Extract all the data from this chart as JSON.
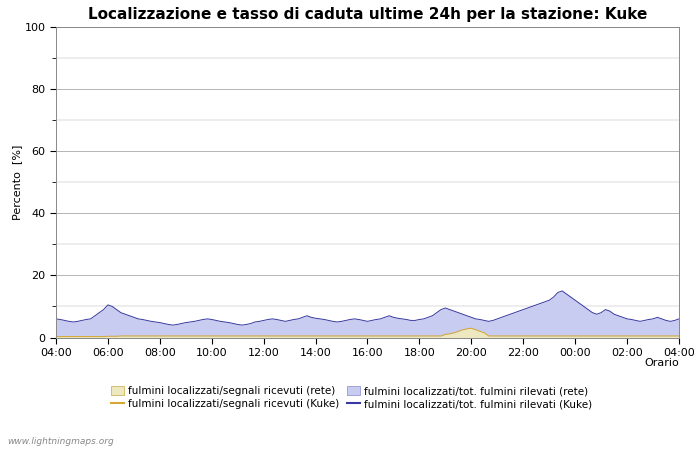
{
  "title": "Localizzazione e tasso di caduta ultime 24h per la stazione: Kuke",
  "ylabel": "Percento  [%]",
  "xlabel": "Orario",
  "watermark": "www.lightningmaps.org",
  "ylim": [
    0,
    100
  ],
  "yticks": [
    0,
    20,
    40,
    60,
    80,
    100
  ],
  "yticks_minor": [
    10,
    30,
    50,
    70,
    90
  ],
  "xtick_labels": [
    "04:00",
    "06:00",
    "08:00",
    "10:00",
    "12:00",
    "14:00",
    "16:00",
    "18:00",
    "20:00",
    "22:00",
    "00:00",
    "02:00",
    "04:00"
  ],
  "color_fill_rete": "#ede8c0",
  "color_fill_kuke": "#c8ccf0",
  "color_line_rete": "#d4a830",
  "color_line_kuke": "#3838a0",
  "background_color": "#ffffff",
  "grid_color": "#aaaaaa",
  "title_fontsize": 11,
  "label_fontsize": 8,
  "tick_fontsize": 8,
  "legend_fontsize": 7.5,
  "n_points": 145,
  "fill_rete": [
    0.3,
    0.3,
    0.3,
    0.3,
    0.3,
    0.3,
    0.3,
    0.3,
    0.3,
    0.3,
    0.3,
    0.3,
    0.4,
    0.4,
    0.4,
    0.5,
    0.5,
    0.5,
    0.5,
    0.5,
    0.5,
    0.5,
    0.5,
    0.5,
    0.5,
    0.5,
    0.5,
    0.5,
    0.5,
    0.5,
    0.5,
    0.5,
    0.5,
    0.5,
    0.5,
    0.5,
    0.5,
    0.5,
    0.5,
    0.5,
    0.5,
    0.5,
    0.5,
    0.5,
    0.5,
    0.5,
    0.5,
    0.5,
    0.5,
    0.5,
    0.5,
    0.5,
    0.5,
    0.5,
    0.5,
    0.5,
    0.5,
    0.5,
    0.5,
    0.5,
    0.5,
    0.5,
    0.5,
    0.5,
    0.5,
    0.5,
    0.5,
    0.5,
    0.5,
    0.5,
    0.5,
    0.5,
    0.5,
    0.5,
    0.5,
    0.5,
    0.5,
    0.5,
    0.5,
    0.5,
    0.5,
    0.5,
    0.5,
    0.5,
    0.5,
    0.5,
    0.5,
    0.5,
    0.5,
    0.5,
    1.0,
    1.2,
    1.5,
    2.0,
    2.5,
    2.8,
    3.0,
    2.5,
    2.0,
    1.5,
    0.5,
    0.5,
    0.5,
    0.5,
    0.5,
    0.5,
    0.5,
    0.5,
    0.5,
    0.5,
    0.5,
    0.5,
    0.5,
    0.5,
    0.5,
    0.5,
    0.5,
    0.5,
    0.5,
    0.5,
    0.5,
    0.5,
    0.5,
    0.5,
    0.5,
    0.5,
    0.5,
    0.5,
    0.5,
    0.5,
    0.5,
    0.5,
    0.5,
    0.5,
    0.5,
    0.5,
    0.5,
    0.5,
    0.5,
    0.5,
    0.5,
    0.5,
    0.5,
    0.5,
    0.5
  ],
  "fill_kuke": [
    6.0,
    5.8,
    5.5,
    5.2,
    5.0,
    5.2,
    5.5,
    5.8,
    6.0,
    7.0,
    8.0,
    9.0,
    10.5,
    10.0,
    9.0,
    8.0,
    7.5,
    7.0,
    6.5,
    6.0,
    5.8,
    5.5,
    5.2,
    5.0,
    4.8,
    4.5,
    4.2,
    4.0,
    4.2,
    4.5,
    4.8,
    5.0,
    5.2,
    5.5,
    5.8,
    6.0,
    5.8,
    5.5,
    5.2,
    5.0,
    4.8,
    4.5,
    4.2,
    4.0,
    4.2,
    4.5,
    5.0,
    5.2,
    5.5,
    5.8,
    6.0,
    5.8,
    5.5,
    5.2,
    5.5,
    5.8,
    6.0,
    6.5,
    7.0,
    6.5,
    6.2,
    6.0,
    5.8,
    5.5,
    5.2,
    5.0,
    5.2,
    5.5,
    5.8,
    6.0,
    5.8,
    5.5,
    5.2,
    5.5,
    5.8,
    6.0,
    6.5,
    7.0,
    6.5,
    6.2,
    6.0,
    5.8,
    5.5,
    5.5,
    5.8,
    6.0,
    6.5,
    7.0,
    8.0,
    9.0,
    9.5,
    9.0,
    8.5,
    8.0,
    7.5,
    7.0,
    6.5,
    6.0,
    5.8,
    5.5,
    5.2,
    5.5,
    6.0,
    6.5,
    7.0,
    7.5,
    8.0,
    8.5,
    9.0,
    9.5,
    10.0,
    10.5,
    11.0,
    11.5,
    12.0,
    13.0,
    14.5,
    15.0,
    14.0,
    13.0,
    12.0,
    11.0,
    10.0,
    9.0,
    8.0,
    7.5,
    8.0,
    9.0,
    8.5,
    7.5,
    7.0,
    6.5,
    6.0,
    5.8,
    5.5,
    5.2,
    5.5,
    5.8,
    6.0,
    6.5,
    6.0,
    5.5,
    5.2,
    5.5,
    6.0
  ]
}
